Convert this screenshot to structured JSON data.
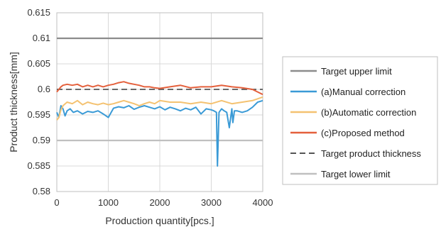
{
  "chart_data": {
    "type": "line",
    "title": "",
    "xlabel": "Production quantity[pcs.]",
    "ylabel": "Product thickness[mm]",
    "xlim": [
      0,
      4000
    ],
    "ylim": [
      0.58,
      0.615
    ],
    "x_ticks": [
      0,
      1000,
      2000,
      3000,
      4000
    ],
    "x_tick_labels": [
      "0",
      "1000",
      "2000",
      "3000",
      "4000"
    ],
    "y_ticks": [
      0.58,
      0.585,
      0.59,
      0.595,
      0.6,
      0.605,
      0.61,
      0.615
    ],
    "y_tick_labels": [
      "0.58",
      "0.585",
      "0.59",
      "0.595",
      "0.6",
      "0.605",
      "0.61",
      "0.615"
    ],
    "grid": true,
    "legend_position": "right",
    "series": [
      {
        "name": "Target upper limit",
        "style": "solid",
        "color": "#8c8c8c",
        "x": [
          0,
          4000
        ],
        "y": [
          0.61,
          0.61
        ]
      },
      {
        "name": "(a)Manual correction",
        "style": "solid",
        "color": "#3a9ad6",
        "x": [
          0,
          40,
          80,
          120,
          160,
          200,
          260,
          320,
          400,
          500,
          600,
          700,
          800,
          900,
          1000,
          1100,
          1200,
          1300,
          1400,
          1500,
          1600,
          1700,
          1800,
          1900,
          2000,
          2100,
          2200,
          2300,
          2400,
          2500,
          2600,
          2700,
          2800,
          2900,
          3000,
          3050,
          3100,
          3120,
          3150,
          3200,
          3250,
          3300,
          3350,
          3400,
          3420,
          3450,
          3500,
          3600,
          3700,
          3800,
          3900,
          4000
        ],
        "y": [
          0.5955,
          0.5945,
          0.5968,
          0.5962,
          0.5948,
          0.5958,
          0.5962,
          0.5955,
          0.5958,
          0.5952,
          0.5957,
          0.5955,
          0.5958,
          0.5952,
          0.5945,
          0.5963,
          0.5966,
          0.5964,
          0.5968,
          0.5961,
          0.5965,
          0.5968,
          0.5965,
          0.5962,
          0.5966,
          0.596,
          0.5965,
          0.5962,
          0.5958,
          0.5963,
          0.596,
          0.5965,
          0.5952,
          0.5962,
          0.596,
          0.5958,
          0.5955,
          0.585,
          0.5955,
          0.5962,
          0.5958,
          0.5955,
          0.5925,
          0.5962,
          0.5935,
          0.5958,
          0.5958,
          0.5955,
          0.5958,
          0.5965,
          0.5975,
          0.5978
        ]
      },
      {
        "name": "(b)Automatic correction",
        "style": "solid",
        "color": "#f4c271",
        "x": [
          0,
          40,
          80,
          120,
          200,
          300,
          400,
          500,
          600,
          700,
          800,
          900,
          1000,
          1100,
          1200,
          1300,
          1400,
          1500,
          1600,
          1700,
          1800,
          1900,
          2000,
          2200,
          2400,
          2600,
          2800,
          3000,
          3200,
          3400,
          3600,
          3800,
          4000
        ],
        "y": [
          0.594,
          0.5945,
          0.596,
          0.5968,
          0.5975,
          0.5972,
          0.5978,
          0.597,
          0.5975,
          0.5972,
          0.597,
          0.5973,
          0.597,
          0.5972,
          0.5975,
          0.5978,
          0.5975,
          0.5972,
          0.5968,
          0.5972,
          0.5975,
          0.5972,
          0.5978,
          0.5975,
          0.5975,
          0.5972,
          0.5975,
          0.5972,
          0.5978,
          0.5972,
          0.5975,
          0.5978,
          0.5985
        ]
      },
      {
        "name": "(c)Proposed method",
        "style": "solid",
        "color": "#e4603c",
        "x": [
          0,
          40,
          80,
          120,
          200,
          300,
          400,
          500,
          600,
          700,
          800,
          900,
          1000,
          1100,
          1200,
          1300,
          1400,
          1500,
          1600,
          1700,
          1800,
          1900,
          2000,
          2200,
          2400,
          2600,
          2800,
          3000,
          3200,
          3400,
          3600,
          3800,
          3900,
          4000
        ],
        "y": [
          0.5995,
          0.6,
          0.6005,
          0.6008,
          0.601,
          0.6008,
          0.601,
          0.6005,
          0.6008,
          0.6005,
          0.6008,
          0.6005,
          0.6008,
          0.601,
          0.6013,
          0.6015,
          0.6012,
          0.601,
          0.6008,
          0.6005,
          0.6005,
          0.6003,
          0.6002,
          0.6005,
          0.6008,
          0.6003,
          0.6005,
          0.6005,
          0.6008,
          0.6005,
          0.6003,
          0.6,
          0.5995,
          0.599
        ]
      },
      {
        "name": "Target product thickness",
        "style": "dashed",
        "color": "#555555",
        "x": [
          0,
          4000
        ],
        "y": [
          0.6,
          0.6
        ]
      },
      {
        "name": "Target lower limit",
        "style": "solid",
        "color": "#c0c0c0",
        "x": [
          0,
          4000
        ],
        "y": [
          0.59,
          0.59
        ]
      }
    ]
  }
}
